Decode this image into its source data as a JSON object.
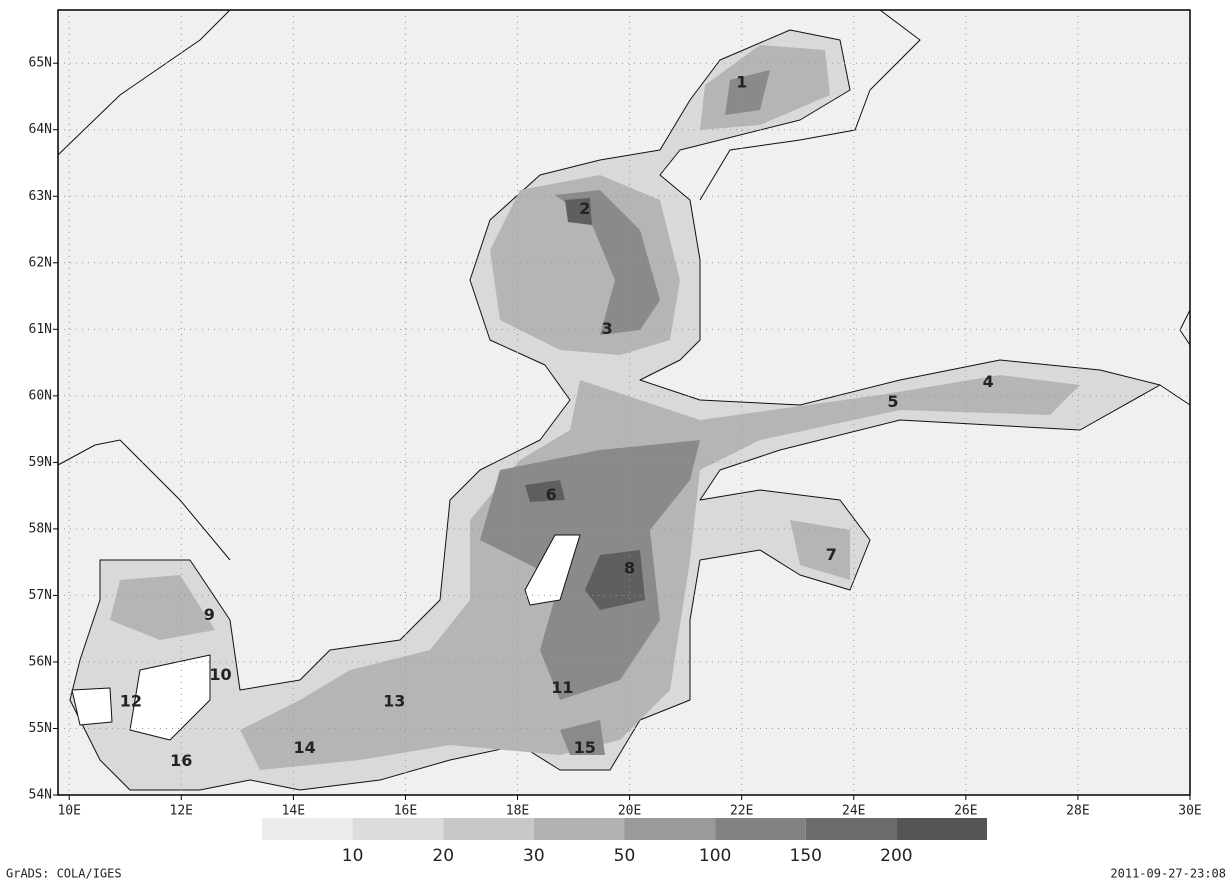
{
  "map": {
    "lonlim": [
      9.8,
      30
    ],
    "latlim": [
      54,
      65.8
    ],
    "lonticks": [
      {
        "value": 10,
        "label": "10E"
      },
      {
        "value": 12,
        "label": "12E"
      },
      {
        "value": 14,
        "label": "14E"
      },
      {
        "value": 16,
        "label": "16E"
      },
      {
        "value": 18,
        "label": "18E"
      },
      {
        "value": 20,
        "label": "20E"
      },
      {
        "value": 22,
        "label": "22E"
      },
      {
        "value": 24,
        "label": "24E"
      },
      {
        "value": 26,
        "label": "26E"
      },
      {
        "value": 28,
        "label": "28E"
      },
      {
        "value": 30,
        "label": "30E"
      }
    ],
    "latticks": [
      {
        "value": 54,
        "label": "54N"
      },
      {
        "value": 55,
        "label": "55N"
      },
      {
        "value": 56,
        "label": "56N"
      },
      {
        "value": 57,
        "label": "57N"
      },
      {
        "value": 58,
        "label": "58N"
      },
      {
        "value": 59,
        "label": "59N"
      },
      {
        "value": 60,
        "label": "60N"
      },
      {
        "value": 61,
        "label": "61N"
      },
      {
        "value": 62,
        "label": "62N"
      },
      {
        "value": 63,
        "label": "63N"
      },
      {
        "value": 64,
        "label": "64N"
      },
      {
        "value": 65,
        "label": "65N"
      }
    ],
    "regions": [
      {
        "label": "1",
        "lon": 22.0,
        "lat": 64.7
      },
      {
        "label": "2",
        "lon": 19.2,
        "lat": 62.8
      },
      {
        "label": "3",
        "lon": 19.6,
        "lat": 61.0
      },
      {
        "label": "4",
        "lon": 26.4,
        "lat": 60.2
      },
      {
        "label": "5",
        "lon": 24.7,
        "lat": 59.9
      },
      {
        "label": "6",
        "lon": 18.6,
        "lat": 58.5
      },
      {
        "label": "7",
        "lon": 23.6,
        "lat": 57.6
      },
      {
        "label": "8",
        "lon": 20.0,
        "lat": 57.4
      },
      {
        "label": "9",
        "lon": 12.5,
        "lat": 56.7
      },
      {
        "label": "10",
        "lon": 12.7,
        "lat": 55.8
      },
      {
        "label": "11",
        "lon": 18.8,
        "lat": 55.6
      },
      {
        "label": "12",
        "lon": 11.1,
        "lat": 55.4
      },
      {
        "label": "13",
        "lon": 15.8,
        "lat": 55.4
      },
      {
        "label": "14",
        "lon": 14.2,
        "lat": 54.7
      },
      {
        "label": "15",
        "lon": 19.2,
        "lat": 54.7
      },
      {
        "label": "16",
        "lon": 12.0,
        "lat": 54.5
      }
    ]
  },
  "colorbar": {
    "levels": [
      10,
      20,
      30,
      50,
      100,
      150,
      200
    ],
    "colors": [
      "#ececec",
      "#dcdcdc",
      "#c8c8c8",
      "#b2b2b2",
      "#9a9a9a",
      "#828282",
      "#6c6c6c",
      "#555555"
    ]
  },
  "footer": {
    "left": "GrADS: COLA/IGES",
    "right": "2011-09-27-23:08"
  }
}
